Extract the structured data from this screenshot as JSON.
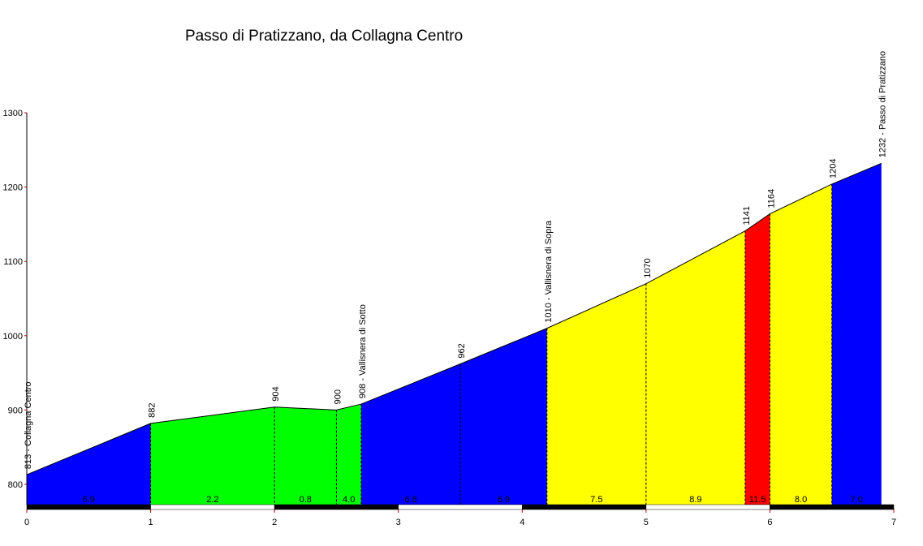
{
  "chart_data": {
    "type": "area",
    "title": "Passo di Pratizzano, da Collagna Centro",
    "xlabel": "",
    "ylabel": "",
    "xlim": [
      0,
      7
    ],
    "ylim": [
      770,
      1300
    ],
    "x_ticks": [
      "0",
      "1",
      "2",
      "3",
      "4",
      "5",
      "6",
      "7"
    ],
    "y_ticks": [
      "800",
      "900",
      "1000",
      "1100",
      "1200",
      "1300"
    ],
    "grid": false,
    "legend": "none",
    "profile": [
      {
        "x": 0,
        "y": 813
      },
      {
        "x": 1,
        "y": 882
      },
      {
        "x": 2,
        "y": 904
      },
      {
        "x": 2.5,
        "y": 900
      },
      {
        "x": 2.7,
        "y": 908
      },
      {
        "x": 3.5,
        "y": 962
      },
      {
        "x": 4.2,
        "y": 1010
      },
      {
        "x": 5,
        "y": 1070
      },
      {
        "x": 5.8,
        "y": 1141
      },
      {
        "x": 6,
        "y": 1164
      },
      {
        "x": 6.5,
        "y": 1204
      },
      {
        "x": 6.9,
        "y": 1232
      }
    ],
    "point_labels": [
      {
        "x": 0,
        "text": "813 - Collagna Centro"
      },
      {
        "x": 1,
        "text": "882"
      },
      {
        "x": 2,
        "text": "904"
      },
      {
        "x": 2.5,
        "text": "900"
      },
      {
        "x": 2.7,
        "text": "908 - Vallisnera di Sotto"
      },
      {
        "x": 3.5,
        "text": "962"
      },
      {
        "x": 4.2,
        "text": "1010 - Vallisnera di Sopra"
      },
      {
        "x": 5,
        "text": "1070"
      },
      {
        "x": 5.8,
        "text": "1141"
      },
      {
        "x": 6,
        "text": "1164"
      },
      {
        "x": 6.5,
        "text": "1204"
      },
      {
        "x": 6.9,
        "text": "1232 - Passo di Pratizzano"
      }
    ],
    "gradient_labels": [
      {
        "x": 0.5,
        "text": "6.9"
      },
      {
        "x": 1.5,
        "text": "2.2"
      },
      {
        "x": 2.25,
        "text": "0.8"
      },
      {
        "x": 2.6,
        "text": "4.0"
      },
      {
        "x": 3.1,
        "text": "6.8"
      },
      {
        "x": 3.85,
        "text": "6.9"
      },
      {
        "x": 4.6,
        "text": "7.5"
      },
      {
        "x": 5.4,
        "text": "8.9"
      },
      {
        "x": 5.9,
        "text": "11.5"
      },
      {
        "x": 6.25,
        "text": "8.0"
      },
      {
        "x": 6.7,
        "text": "7.0"
      }
    ],
    "segment_colors": [
      "#0000ff",
      "#00ff00",
      "#00ff00",
      "#00ff00",
      "#0000ff",
      "#0000ff",
      "#ffff00",
      "#ffff00",
      "#ff0000",
      "#ffff00",
      "#0000ff"
    ]
  }
}
